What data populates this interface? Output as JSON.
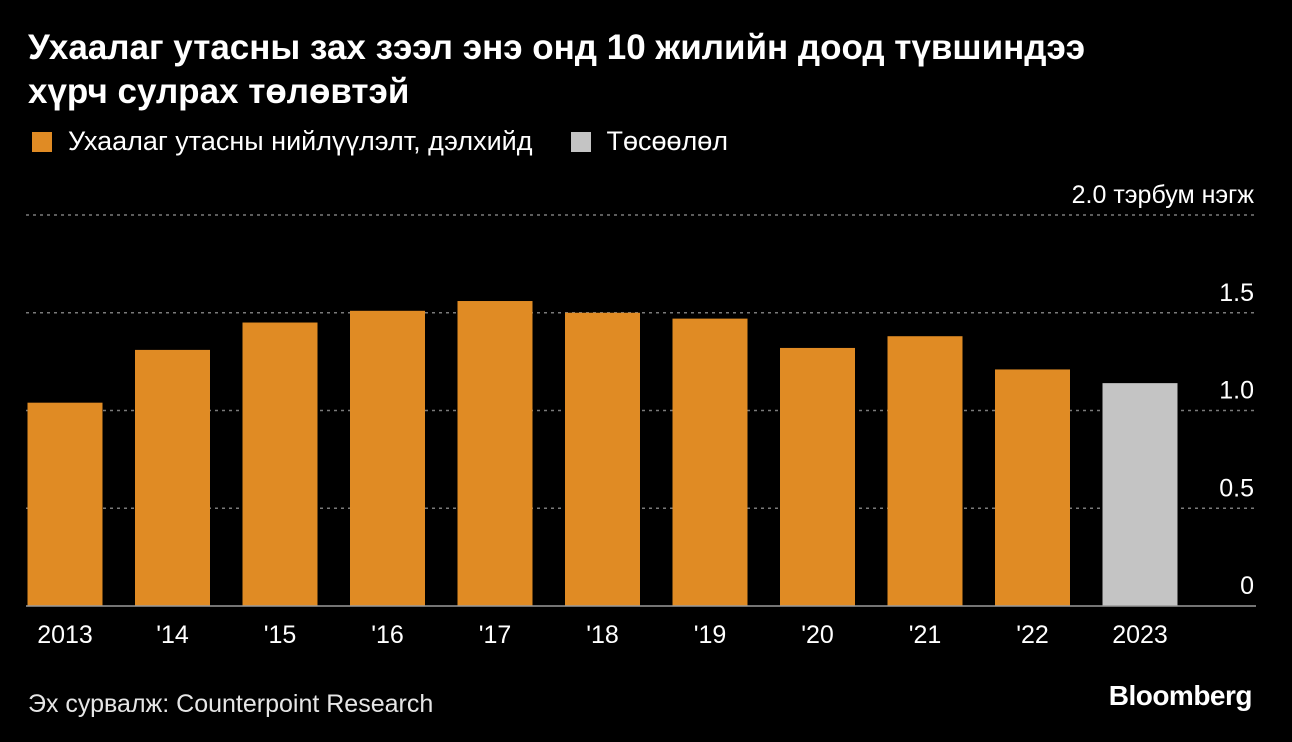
{
  "title": {
    "line1": "Ухаалаг утасны зах зээл энэ онд 10 жилийн доод түвшиндээ",
    "line2": "хүрч сулрах төлөвтэй"
  },
  "legend": {
    "items": [
      {
        "label": "Ухаалаг утасны нийлүүлэлт, дэлхийд",
        "color": "#e08b24"
      },
      {
        "label": "Төсөөлөл",
        "color": "#c4c4c4"
      }
    ]
  },
  "chart_data": {
    "type": "bar",
    "categories": [
      "2013",
      "'14",
      "'15",
      "'16",
      "'17",
      "'18",
      "'19",
      "'20",
      "'21",
      "'22",
      "2023"
    ],
    "series": [
      {
        "name": "Ухаалаг утасны нийлүүлэлт, дэлхийд",
        "values": [
          1.04,
          1.31,
          1.45,
          1.51,
          1.56,
          1.5,
          1.47,
          1.32,
          1.38,
          1.21,
          1.14
        ],
        "colors": [
          "#e08b24",
          "#e08b24",
          "#e08b24",
          "#e08b24",
          "#e08b24",
          "#e08b24",
          "#e08b24",
          "#e08b24",
          "#e08b24",
          "#e08b24",
          "#c4c4c4"
        ]
      }
    ],
    "projected_categories": [
      "2023"
    ],
    "ylim": [
      0,
      2.0
    ],
    "yticks": [
      "0",
      "0.5",
      "1.0",
      "1.5",
      "2.0 тэрбум нэгж"
    ],
    "ytick_values": [
      0,
      0.5,
      1.0,
      1.5,
      2.0
    ],
    "ylabel": "тэрбум нэгж",
    "grid": true,
    "legend_position": "top-left"
  },
  "footer": {
    "source": "Эх сурвалж: Counterpoint Research",
    "brand": "Bloomberg"
  }
}
